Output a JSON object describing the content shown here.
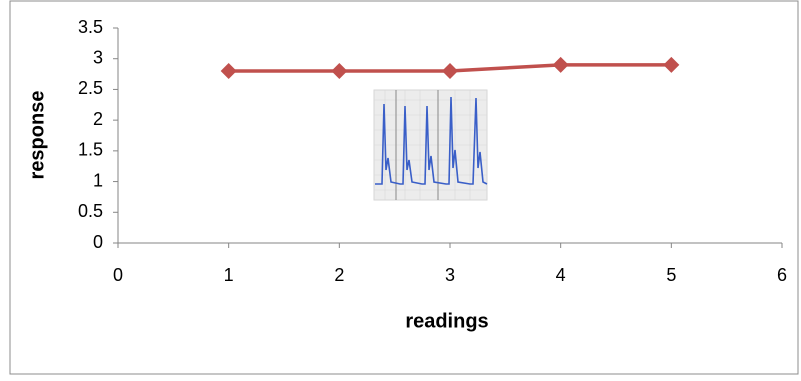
{
  "chart_data": {
    "type": "line",
    "x_label": "readings",
    "y_label": "response",
    "x": [
      1,
      2,
      3,
      4,
      5
    ],
    "series": [
      {
        "name": "response",
        "color": "#c0504d",
        "values": [
          2.8,
          2.8,
          2.8,
          2.9,
          2.9
        ]
      }
    ],
    "xlim": [
      0,
      6
    ],
    "xticks": [
      0,
      1,
      2,
      3,
      4,
      5,
      6
    ],
    "ylim": [
      0,
      3.5
    ],
    "yticks": [
      0,
      0.5,
      1,
      1.5,
      2,
      2.5,
      3,
      3.5
    ],
    "grid": false,
    "legend": false
  }
}
